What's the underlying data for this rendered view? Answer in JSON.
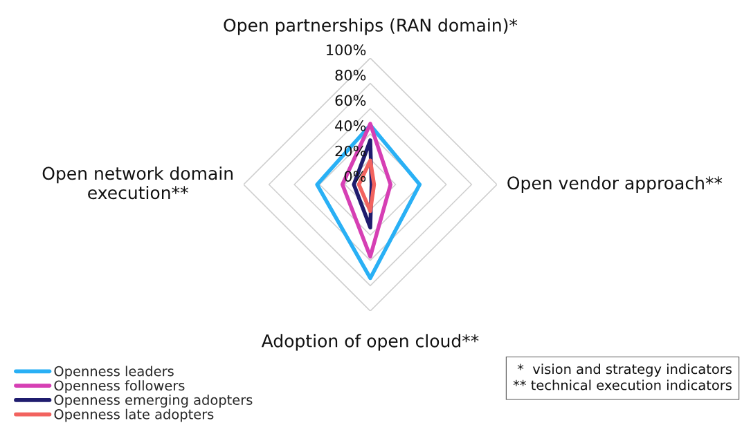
{
  "chart_data": {
    "type": "radar",
    "categories": [
      "Open partnerships (RAN domain)*",
      "Open vendor approach**",
      "Adoption of open cloud**",
      "Open network domain execution**"
    ],
    "series": [
      {
        "name": "Openness leaders",
        "color": "#29b0f5",
        "values": [
          47,
          39,
          74,
          42
        ]
      },
      {
        "name": "Openness followers",
        "color": "#d63fb4",
        "values": [
          48,
          16,
          57,
          22
        ]
      },
      {
        "name": "Openness emerging adopters",
        "color": "#1f1c6e",
        "values": [
          35,
          1,
          34,
          13
        ]
      },
      {
        "name": "Openness late adopters",
        "color": "#f2635f",
        "values": [
          19,
          3,
          21,
          9
        ]
      }
    ],
    "ylim": [
      0,
      100
    ],
    "yticks": [
      {
        "value": 0,
        "label": "0%"
      },
      {
        "value": 20,
        "label": "20%"
      },
      {
        "value": 40,
        "label": "40%"
      },
      {
        "value": 60,
        "label": "60%"
      },
      {
        "value": 80,
        "label": "80%"
      },
      {
        "value": 100,
        "label": "100%"
      }
    ],
    "grid": true,
    "legend": "bottom left",
    "annotations": [
      "*  vision and strategy indicators",
      "** technical execution indicators"
    ]
  }
}
